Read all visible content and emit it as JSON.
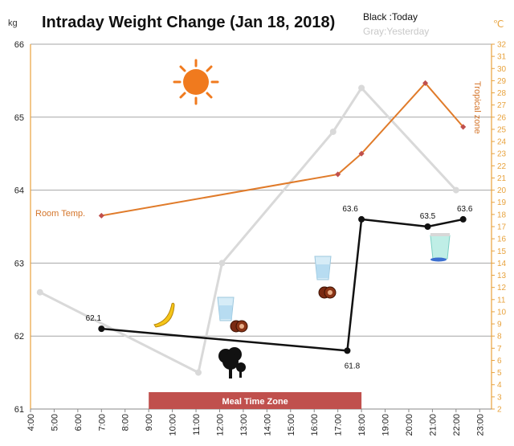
{
  "header": {
    "title": "Intraday Weight Change (Jan 18, 2018)",
    "legend_today": "Black :Today",
    "legend_yesterday": "Gray:Yesterday",
    "unit_left": "kg",
    "unit_right": "℃"
  },
  "annotations": {
    "room_temp": "Room Temp.",
    "tropical_zone": "Tropical zone",
    "meal_time_zone": "Meal Time Zone"
  },
  "icons": [
    "sun-icon",
    "banana-icon",
    "water-glass-icon",
    "cookie-icon",
    "tree-icon",
    "cup-icon"
  ],
  "colors": {
    "today": "#111111",
    "yesterday": "#d9d9d9",
    "temperature": "#e07b2a",
    "temperature_marker": "#c0504d",
    "right_axis": "#e8a23c",
    "meal_zone": "#c0504d",
    "sun": "#f07a1e"
  },
  "chart_data": {
    "type": "line",
    "x_unit": "hour of day",
    "x_ticks": [
      "4:00",
      "5:00",
      "6:00",
      "7:00",
      "8:00",
      "9:00",
      "10:00",
      "11:00",
      "12:00",
      "13:00",
      "14:00",
      "15:00",
      "16:00",
      "17:00",
      "18:00",
      "19:00",
      "20:00",
      "21:00",
      "22:00",
      "23:00"
    ],
    "xlim": [
      4,
      23.5
    ],
    "ylim_left": [
      61,
      66
    ],
    "ylim_right": [
      2,
      32
    ],
    "y_ticks_left": [
      "61",
      "62",
      "63",
      "64",
      "65",
      "66"
    ],
    "y_ticks_right": [
      "2",
      "3",
      "4",
      "5",
      "6",
      "7",
      "8",
      "9",
      "10",
      "11",
      "12",
      "13",
      "14",
      "15",
      "16",
      "17",
      "18",
      "19",
      "20",
      "21",
      "22",
      "23",
      "24",
      "25",
      "26",
      "27",
      "28",
      "29",
      "30",
      "31",
      "32"
    ],
    "meal_time_zone": [
      9,
      18
    ],
    "series": [
      {
        "name": "Black :Today",
        "axis": "left",
        "points": [
          [
            7.0,
            62.1
          ],
          [
            17.4,
            61.8
          ],
          [
            18.0,
            63.6
          ],
          [
            20.8,
            63.5
          ],
          [
            22.3,
            63.6
          ]
        ],
        "labels": [
          "62.1",
          "61.8",
          "63.6",
          "63.5",
          "63.6"
        ]
      },
      {
        "name": "Gray:Yesterday",
        "axis": "left",
        "points": [
          [
            4.4,
            62.6
          ],
          [
            11.1,
            61.5
          ],
          [
            12.1,
            63.0
          ],
          [
            16.8,
            64.8
          ],
          [
            18.0,
            65.4
          ],
          [
            22.0,
            64.0
          ]
        ]
      },
      {
        "name": "Room Temp.",
        "axis": "right",
        "points": [
          [
            7.0,
            17.9
          ],
          [
            17.0,
            21.3
          ],
          [
            18.0,
            23.0
          ],
          [
            20.7,
            28.8
          ],
          [
            22.3,
            25.2
          ]
        ]
      }
    ]
  }
}
